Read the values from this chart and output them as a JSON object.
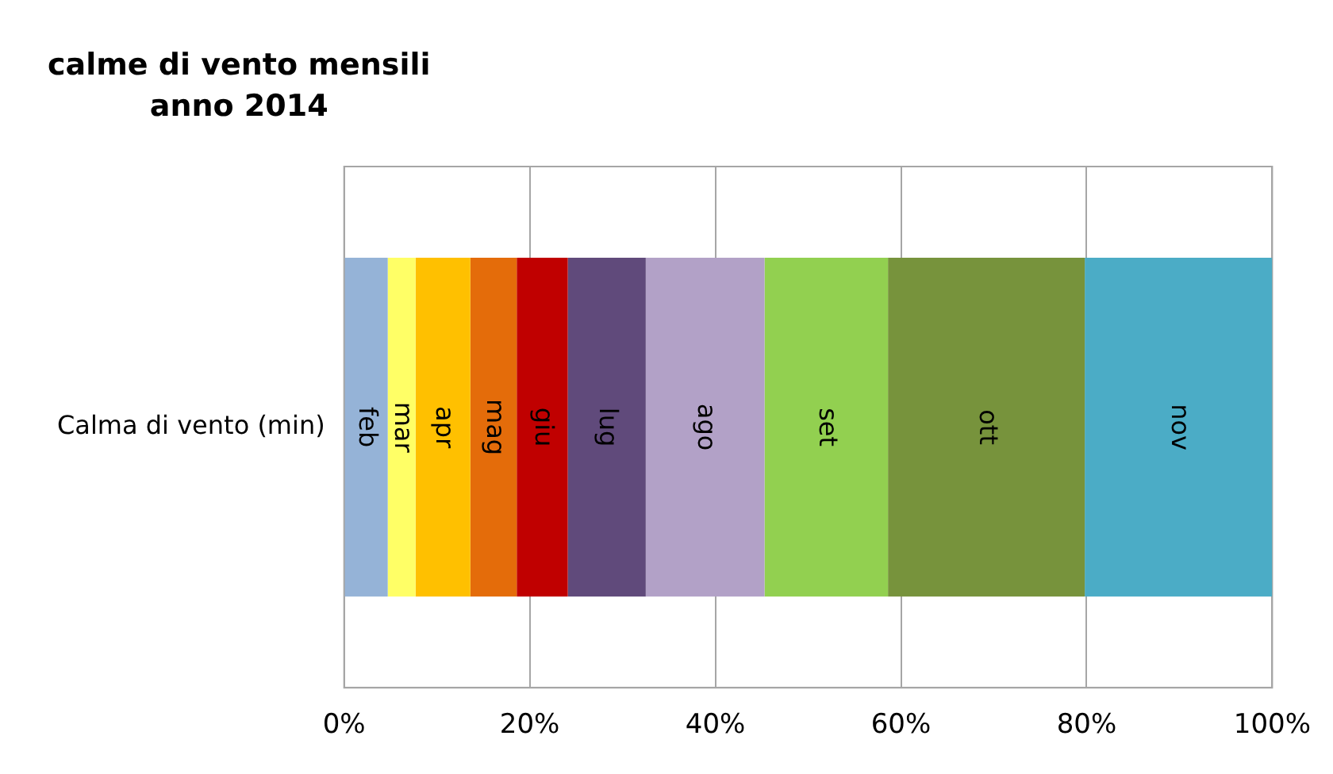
{
  "chart_data": {
    "type": "bar",
    "orientation": "horizontal",
    "stacked": true,
    "title": "calme di vento mensili\nanno 2014",
    "categories": [
      "Calma di vento (min)"
    ],
    "series": [
      {
        "name": "feb",
        "color": "#95b3d7",
        "values": [
          4.7
        ]
      },
      {
        "name": "mar",
        "color": "#ffff66",
        "values": [
          3.0
        ]
      },
      {
        "name": "apr",
        "color": "#ffc000",
        "values": [
          5.9
        ]
      },
      {
        "name": "mag",
        "color": "#e46c0a",
        "values": [
          5.0
        ]
      },
      {
        "name": "giu",
        "color": "#c00000",
        "values": [
          5.5
        ]
      },
      {
        "name": "lug",
        "color": "#604a7b",
        "values": [
          8.4
        ]
      },
      {
        "name": "ago",
        "color": "#b2a1c7",
        "values": [
          12.8
        ]
      },
      {
        "name": "set",
        "color": "#92d050",
        "values": [
          13.3
        ]
      },
      {
        "name": "ott",
        "color": "#77933c",
        "values": [
          21.2
        ]
      },
      {
        "name": "nov",
        "color": "#4bacc6",
        "values": [
          20.2
        ]
      }
    ],
    "xlim": [
      0,
      100
    ],
    "xticks": [
      {
        "value": 0,
        "label": "0%"
      },
      {
        "value": 20,
        "label": "20%"
      },
      {
        "value": 40,
        "label": "40%"
      },
      {
        "value": 60,
        "label": "60%"
      },
      {
        "value": 80,
        "label": "80%"
      },
      {
        "value": 100,
        "label": "100%"
      }
    ],
    "grid": "x",
    "legend": false
  }
}
